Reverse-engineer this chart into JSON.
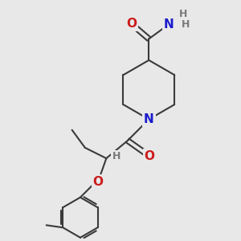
{
  "bg_color": "#e8e8e8",
  "bond_color": "#3a3a3a",
  "N_color": "#1a1acc",
  "O_color": "#cc1a1a",
  "H_color": "#7a7a7a",
  "line_width": 1.5,
  "font_size": 10,
  "fig_size": [
    3.0,
    3.0
  ],
  "dpi": 100,
  "xlim": [
    0,
    10
  ],
  "ylim": [
    0,
    10
  ]
}
